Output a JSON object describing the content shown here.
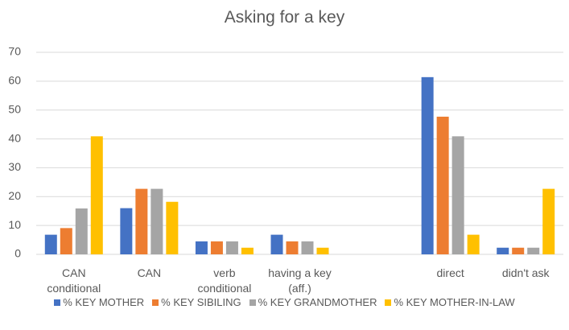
{
  "chart_data": {
    "type": "bar",
    "title": "Asking for a key",
    "categories": [
      "CAN conditional",
      "CAN",
      "verb conditional",
      "having a key (aff.)",
      null,
      "direct",
      "didn't ask"
    ],
    "series": [
      {
        "name": "% KEY MOTHER",
        "color": "#4472c4",
        "values": [
          6.8,
          16,
          4.5,
          6.8,
          null,
          61.4,
          2.3
        ]
      },
      {
        "name": "% KEY SIBILING",
        "color": "#ed7d31",
        "values": [
          9.1,
          22.7,
          4.5,
          4.5,
          null,
          47.7,
          2.3
        ]
      },
      {
        "name": "% KEY GRANDMOTHER",
        "color": "#a5a5a5",
        "values": [
          15.9,
          22.7,
          4.5,
          4.5,
          null,
          40.9,
          2.3
        ]
      },
      {
        "name": "% KEY MOTHER-IN-LAW",
        "color": "#ffc000",
        "values": [
          40.9,
          18.2,
          2.3,
          2.3,
          null,
          6.8,
          22.7
        ]
      }
    ],
    "ylim": [
      0,
      70
    ],
    "yticks": [
      0,
      10,
      20,
      30,
      40,
      50,
      60,
      70
    ],
    "grid": true,
    "legend": "bottom"
  }
}
